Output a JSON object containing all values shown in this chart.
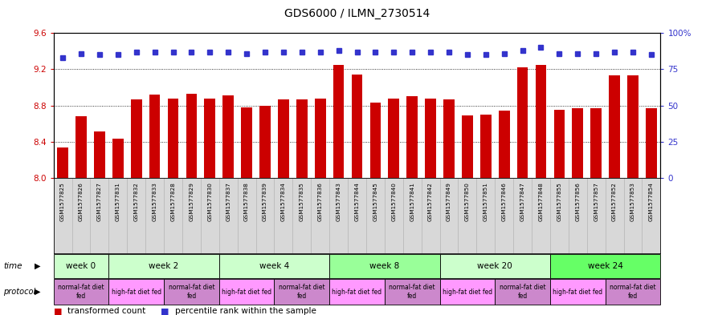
{
  "title": "GDS6000 / ILMN_2730514",
  "samples": [
    "GSM1577825",
    "GSM1577826",
    "GSM1577827",
    "GSM1577831",
    "GSM1577832",
    "GSM1577833",
    "GSM1577828",
    "GSM1577829",
    "GSM1577830",
    "GSM1577837",
    "GSM1577838",
    "GSM1577839",
    "GSM1577834",
    "GSM1577835",
    "GSM1577836",
    "GSM1577843",
    "GSM1577844",
    "GSM1577845",
    "GSM1577840",
    "GSM1577841",
    "GSM1577842",
    "GSM1577849",
    "GSM1577850",
    "GSM1577851",
    "GSM1577846",
    "GSM1577847",
    "GSM1577848",
    "GSM1577855",
    "GSM1577856",
    "GSM1577857",
    "GSM1577852",
    "GSM1577853",
    "GSM1577854"
  ],
  "bar_values": [
    8.34,
    8.68,
    8.51,
    8.43,
    8.87,
    8.92,
    8.88,
    8.93,
    8.88,
    8.91,
    8.78,
    8.8,
    8.87,
    8.87,
    8.88,
    9.25,
    9.14,
    8.83,
    8.88,
    8.9,
    8.88,
    8.87,
    8.69,
    8.7,
    8.74,
    9.22,
    9.25,
    8.75,
    8.77,
    8.77,
    9.13,
    9.13,
    8.77
  ],
  "percentile_values": [
    83,
    86,
    85,
    85,
    87,
    87,
    87,
    87,
    87,
    87,
    86,
    87,
    87,
    87,
    87,
    88,
    87,
    87,
    87,
    87,
    87,
    87,
    85,
    85,
    86,
    88,
    90,
    86,
    86,
    86,
    87,
    87,
    85
  ],
  "bar_color": "#cc0000",
  "dot_color": "#3333cc",
  "ylim_left": [
    8.0,
    9.6
  ],
  "ylim_right": [
    0,
    100
  ],
  "yticks_left": [
    8.0,
    8.4,
    8.8,
    9.2,
    9.6
  ],
  "yticks_right": [
    0,
    25,
    50,
    75,
    100
  ],
  "ytick_labels_right": [
    "0",
    "25",
    "50",
    "75",
    "100%"
  ],
  "time_groups": [
    {
      "label": "week 0",
      "start": 0,
      "end": 2,
      "color": "#ccffcc"
    },
    {
      "label": "week 2",
      "start": 3,
      "end": 8,
      "color": "#ccffcc"
    },
    {
      "label": "week 4",
      "start": 9,
      "end": 14,
      "color": "#ccffcc"
    },
    {
      "label": "week 8",
      "start": 15,
      "end": 20,
      "color": "#99ff99"
    },
    {
      "label": "week 20",
      "start": 21,
      "end": 26,
      "color": "#ccffcc"
    },
    {
      "label": "week 24",
      "start": 27,
      "end": 32,
      "color": "#66ff66"
    }
  ],
  "protocol_groups": [
    {
      "label": "normal-fat diet\nfed",
      "start": 0,
      "end": 2,
      "color": "#cc88cc"
    },
    {
      "label": "high-fat diet fed",
      "start": 3,
      "end": 5,
      "color": "#ff99ff"
    },
    {
      "label": "normal-fat diet\nfed",
      "start": 6,
      "end": 8,
      "color": "#cc88cc"
    },
    {
      "label": "high-fat diet fed",
      "start": 9,
      "end": 11,
      "color": "#ff99ff"
    },
    {
      "label": "normal-fat diet\nfed",
      "start": 12,
      "end": 14,
      "color": "#cc88cc"
    },
    {
      "label": "high-fat diet fed",
      "start": 15,
      "end": 17,
      "color": "#ff99ff"
    },
    {
      "label": "normal-fat diet\nfed",
      "start": 18,
      "end": 20,
      "color": "#cc88cc"
    },
    {
      "label": "high-fat diet fed",
      "start": 21,
      "end": 23,
      "color": "#ff99ff"
    },
    {
      "label": "normal-fat diet\nfed",
      "start": 24,
      "end": 26,
      "color": "#cc88cc"
    },
    {
      "label": "high-fat diet fed",
      "start": 27,
      "end": 29,
      "color": "#ff99ff"
    },
    {
      "label": "normal-fat diet\nfed",
      "start": 30,
      "end": 32,
      "color": "#cc88cc"
    }
  ],
  "background_color": "#ffffff",
  "label_bg_color": "#d8d8d8",
  "fig_width": 8.89,
  "fig_height": 3.93,
  "dpi": 100
}
